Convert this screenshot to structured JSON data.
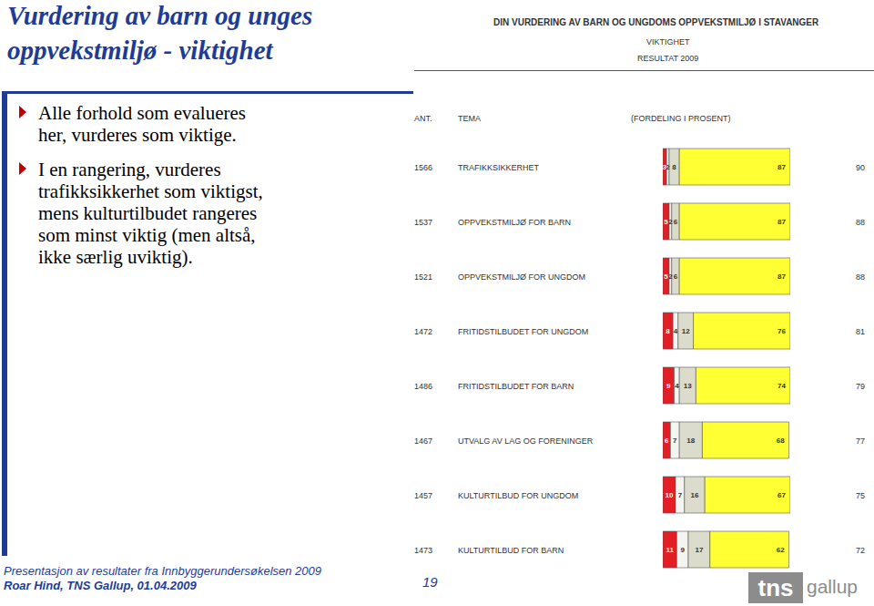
{
  "title": "Vurdering av barn og unges oppvekstmiljø - viktighet",
  "bullets": [
    [
      "Alle forhold som evalueres",
      "her, vurderes som viktige."
    ],
    [
      "I en rangering, vurderes",
      "trafikksikkerhet som viktigst,",
      "mens kulturtilbudet rangeres",
      "som minst viktig (men altså,",
      "ikke særlig uviktig)."
    ]
  ],
  "footer": {
    "lines": [
      "Presentasjon av resultater fra Innbyggerundersøkelsen 2009",
      "Roar Hind, TNS Gallup, 01.04.2009"
    ],
    "page": 19,
    "logo": [
      "tns",
      "gallup"
    ]
  },
  "chart_data": {
    "type": "bar",
    "orientation": "horizontal",
    "stacked": true,
    "data_labels": true,
    "tick_labels": false,
    "title": "DIN VURDERING AV BARN OG UNGDOMS OPPVEKSTMILJØ I STAVANGER",
    "subtitle": "VIKTIGHET",
    "annotations": [
      "RESULTAT 2009"
    ],
    "column_headers": [
      "ANT.",
      "TEMA",
      "(FORDELING I PROSENT)"
    ],
    "counts": [
      1566,
      1537,
      1521,
      1472,
      1486,
      1467,
      1457,
      1473
    ],
    "categories": [
      "TRAFIKKSIKKERHET",
      "OPPVEKSTMILJØ FOR BARN",
      "OPPVEKSTMILJØ FOR UNGDOM",
      "FRITIDSTILBUDET FOR UNGDOM",
      "FRITIDSTILBUDET FOR BARN",
      "UTVALG AV LAG OG FORENINGER",
      "KULTURTILBUD FOR UNGDOM",
      "KULTURTILBUD FOR BARN"
    ],
    "series": [
      {
        "color": "#e31e24",
        "values": [
          3,
          5,
          5,
          8,
          9,
          6,
          10,
          11
        ]
      },
      {
        "color": "#f4f4f0",
        "values": [
          2,
          2,
          2,
          4,
          4,
          7,
          7,
          9
        ]
      },
      {
        "color": "#dcdccc",
        "values": [
          8,
          6,
          6,
          12,
          13,
          18,
          16,
          17
        ]
      },
      {
        "color": "#ffff33",
        "values": [
          87,
          87,
          87,
          76,
          74,
          68,
          67,
          62
        ]
      }
    ],
    "right_values": [
      90,
      88,
      88,
      81,
      79,
      77,
      75,
      72
    ],
    "xlim": [
      0,
      100
    ]
  }
}
